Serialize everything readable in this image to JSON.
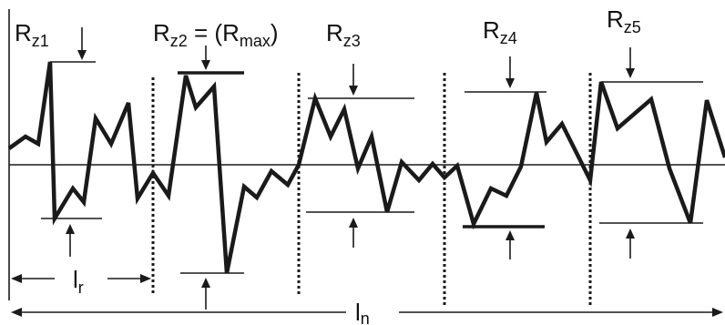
{
  "labels": {
    "rz1": {
      "main": "R",
      "sub": "z1"
    },
    "rz2": {
      "main": "R",
      "sub": "z2",
      "suffix": " = (R",
      "sub2": "max",
      "suffix2": ")"
    },
    "rz3": {
      "main": "R",
      "sub": "z3"
    },
    "rz4": {
      "main": "R",
      "sub": "z4"
    },
    "rz5": {
      "main": "R",
      "sub": "z5"
    },
    "lr": {
      "main": "l",
      "sub": "r"
    },
    "ln": {
      "main": "l",
      "sub": "n"
    }
  },
  "style": {
    "ink": "#1a1a1a"
  }
}
